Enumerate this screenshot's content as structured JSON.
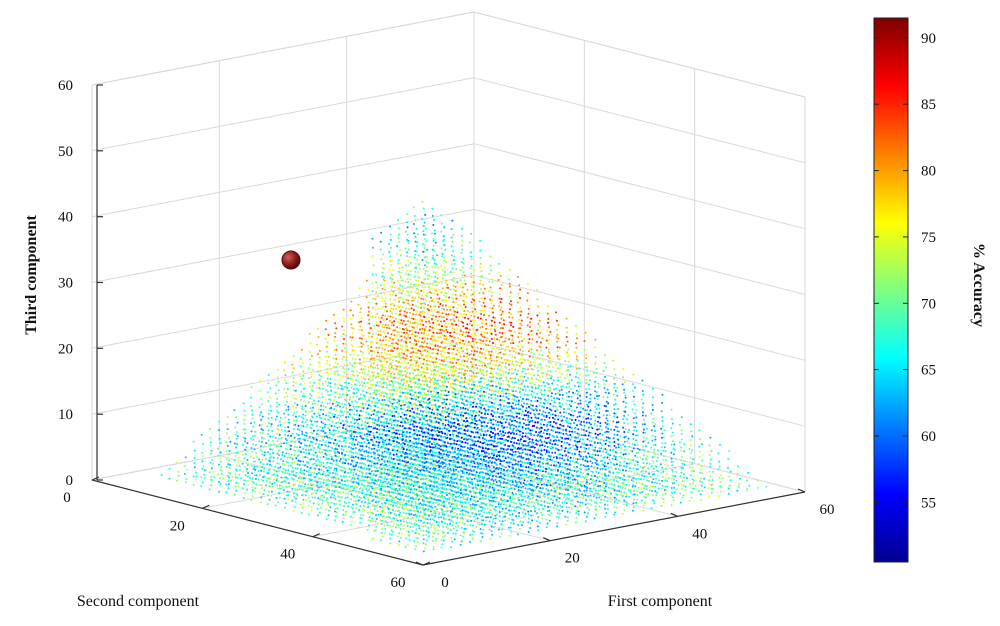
{
  "chart_data": {
    "type": "scatter",
    "title": "",
    "xlabel": "First component",
    "ylabel": "Second component",
    "zlabel": "Third component",
    "colorbar_label": "% Accuracy",
    "x_ticks": [
      "0",
      "20",
      "40",
      "60"
    ],
    "y_ticks": [
      "0",
      "20",
      "40",
      "60"
    ],
    "z_ticks": [
      "0",
      "10",
      "20",
      "30",
      "40",
      "50",
      "60"
    ],
    "colorbar_ticks": [
      "55",
      "60",
      "65",
      "70",
      "75",
      "80",
      "85",
      "90"
    ],
    "xlim": [
      0,
      60
    ],
    "ylim": [
      0,
      60
    ],
    "zlim": [
      0,
      60
    ],
    "color_range": [
      50.5,
      91.5
    ],
    "colormap": "jet",
    "grid": true,
    "points_description": "Dense 3D point cloud over the simplex x+y+z≈55 region; color encodes % Accuracy",
    "highlight_point": {
      "x": 14,
      "y": 7,
      "z": 33,
      "accuracy": 91,
      "color": "#8b1a1a"
    }
  }
}
